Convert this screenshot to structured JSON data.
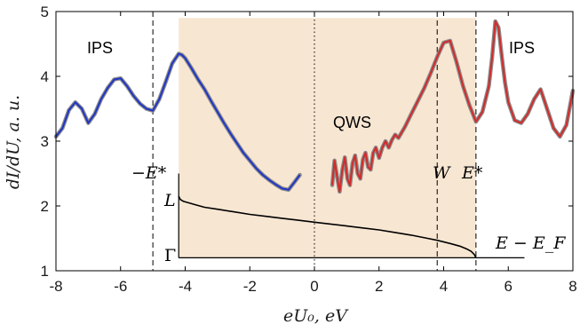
{
  "chart_data": {
    "type": "line",
    "xlabel": "eU₀, eV",
    "ylabel": "dI/dU, a. u.",
    "xlim": [
      -8,
      8
    ],
    "ylim": [
      1,
      5
    ],
    "x_ticks": [
      "-8",
      "-6",
      "-4",
      "-2",
      "0",
      "2",
      "4",
      "6",
      "8"
    ],
    "y_ticks": [
      "1",
      "2",
      "3",
      "4",
      "5"
    ],
    "grid": false,
    "shaded_region": {
      "x_from": -4.2,
      "x_to": 5.0,
      "y_from": 1.2,
      "y_to": 4.9,
      "color": "#f7e6d2"
    },
    "vlines": [
      {
        "x": -5.0,
        "style": "dashed"
      },
      {
        "x": 0.0,
        "style": "dotted"
      },
      {
        "x": 3.8,
        "style": "dashed"
      },
      {
        "x": 5.0,
        "style": "dashed"
      }
    ],
    "annotations": {
      "ips_left": "IPS",
      "ips_right": "IPS",
      "qws": "QWS",
      "minus_e_star": "−E*",
      "w": "W",
      "e_star": "E*",
      "l": "L",
      "gamma": "Γ",
      "e_minus_ef": "E − E_F"
    },
    "series": [
      {
        "color": "#1f35c8",
        "x": [
          -8.0,
          -7.8,
          -7.6,
          -7.4,
          -7.2,
          -7.0,
          -6.8,
          -6.6,
          -6.4,
          -6.2,
          -6.0,
          -5.8,
          -5.6,
          -5.4,
          -5.2,
          -5.0,
          -4.8,
          -4.6,
          -4.4,
          -4.2,
          -4.1,
          -4.0,
          -3.8,
          -3.6,
          -3.4,
          -3.2,
          -3.0,
          -2.8,
          -2.6,
          -2.4,
          -2.2,
          -2.0,
          -1.8,
          -1.6,
          -1.4,
          -1.2,
          -1.0,
          -0.8,
          -0.6,
          -0.45
        ],
        "y": [
          3.07,
          3.2,
          3.48,
          3.6,
          3.5,
          3.28,
          3.42,
          3.65,
          3.82,
          3.95,
          3.97,
          3.85,
          3.7,
          3.58,
          3.5,
          3.47,
          3.65,
          3.92,
          4.2,
          4.35,
          4.33,
          4.28,
          4.12,
          3.95,
          3.8,
          3.62,
          3.45,
          3.28,
          3.12,
          2.97,
          2.82,
          2.7,
          2.58,
          2.48,
          2.4,
          2.33,
          2.27,
          2.25,
          2.38,
          2.48
        ]
      },
      {
        "color": "#d42a2a",
        "x": [
          0.55,
          0.62,
          0.7,
          0.78,
          0.86,
          0.94,
          1.02,
          1.1,
          1.18,
          1.26,
          1.34,
          1.42,
          1.5,
          1.58,
          1.66,
          1.74,
          1.82,
          1.9,
          2.0,
          2.1,
          2.2,
          2.3,
          2.4,
          2.5,
          2.6,
          2.8,
          3.0,
          3.2,
          3.4,
          3.6,
          3.8,
          4.0,
          4.2,
          4.4,
          4.6,
          4.8,
          5.0,
          5.2,
          5.4,
          5.5,
          5.6,
          5.7,
          5.8,
          5.9,
          6.0,
          6.2,
          6.4,
          6.6,
          6.8,
          7.0,
          7.2,
          7.4,
          7.6,
          7.8,
          8.0
        ],
        "y": [
          2.32,
          2.7,
          2.45,
          2.22,
          2.55,
          2.75,
          2.42,
          2.32,
          2.66,
          2.78,
          2.5,
          2.42,
          2.72,
          2.82,
          2.6,
          2.56,
          2.82,
          2.9,
          2.74,
          2.9,
          3.0,
          2.9,
          3.02,
          3.1,
          3.05,
          3.22,
          3.42,
          3.62,
          3.82,
          4.05,
          4.3,
          4.52,
          4.55,
          4.22,
          3.85,
          3.55,
          3.3,
          3.45,
          3.85,
          4.3,
          4.85,
          4.75,
          4.3,
          3.9,
          3.6,
          3.32,
          3.28,
          3.42,
          3.65,
          3.8,
          3.5,
          3.2,
          3.07,
          3.25,
          3.78
        ]
      },
      {
        "color": "#000000",
        "x": [
          -4.2,
          -4.15,
          -4.05,
          -3.9,
          -3.7,
          -3.4,
          -3.0,
          -2.5,
          -2.0,
          -1.5,
          -1.0,
          -0.5,
          0.0,
          0.5,
          1.0,
          1.5,
          2.0,
          2.5,
          3.0,
          3.5,
          3.8,
          4.2,
          4.5,
          4.7,
          4.85,
          4.95,
          5.0
        ],
        "y": [
          2.15,
          2.1,
          2.07,
          2.05,
          2.02,
          1.98,
          1.95,
          1.91,
          1.87,
          1.84,
          1.81,
          1.78,
          1.75,
          1.72,
          1.69,
          1.66,
          1.63,
          1.59,
          1.55,
          1.5,
          1.47,
          1.42,
          1.38,
          1.34,
          1.3,
          1.25,
          1.2
        ]
      }
    ]
  }
}
